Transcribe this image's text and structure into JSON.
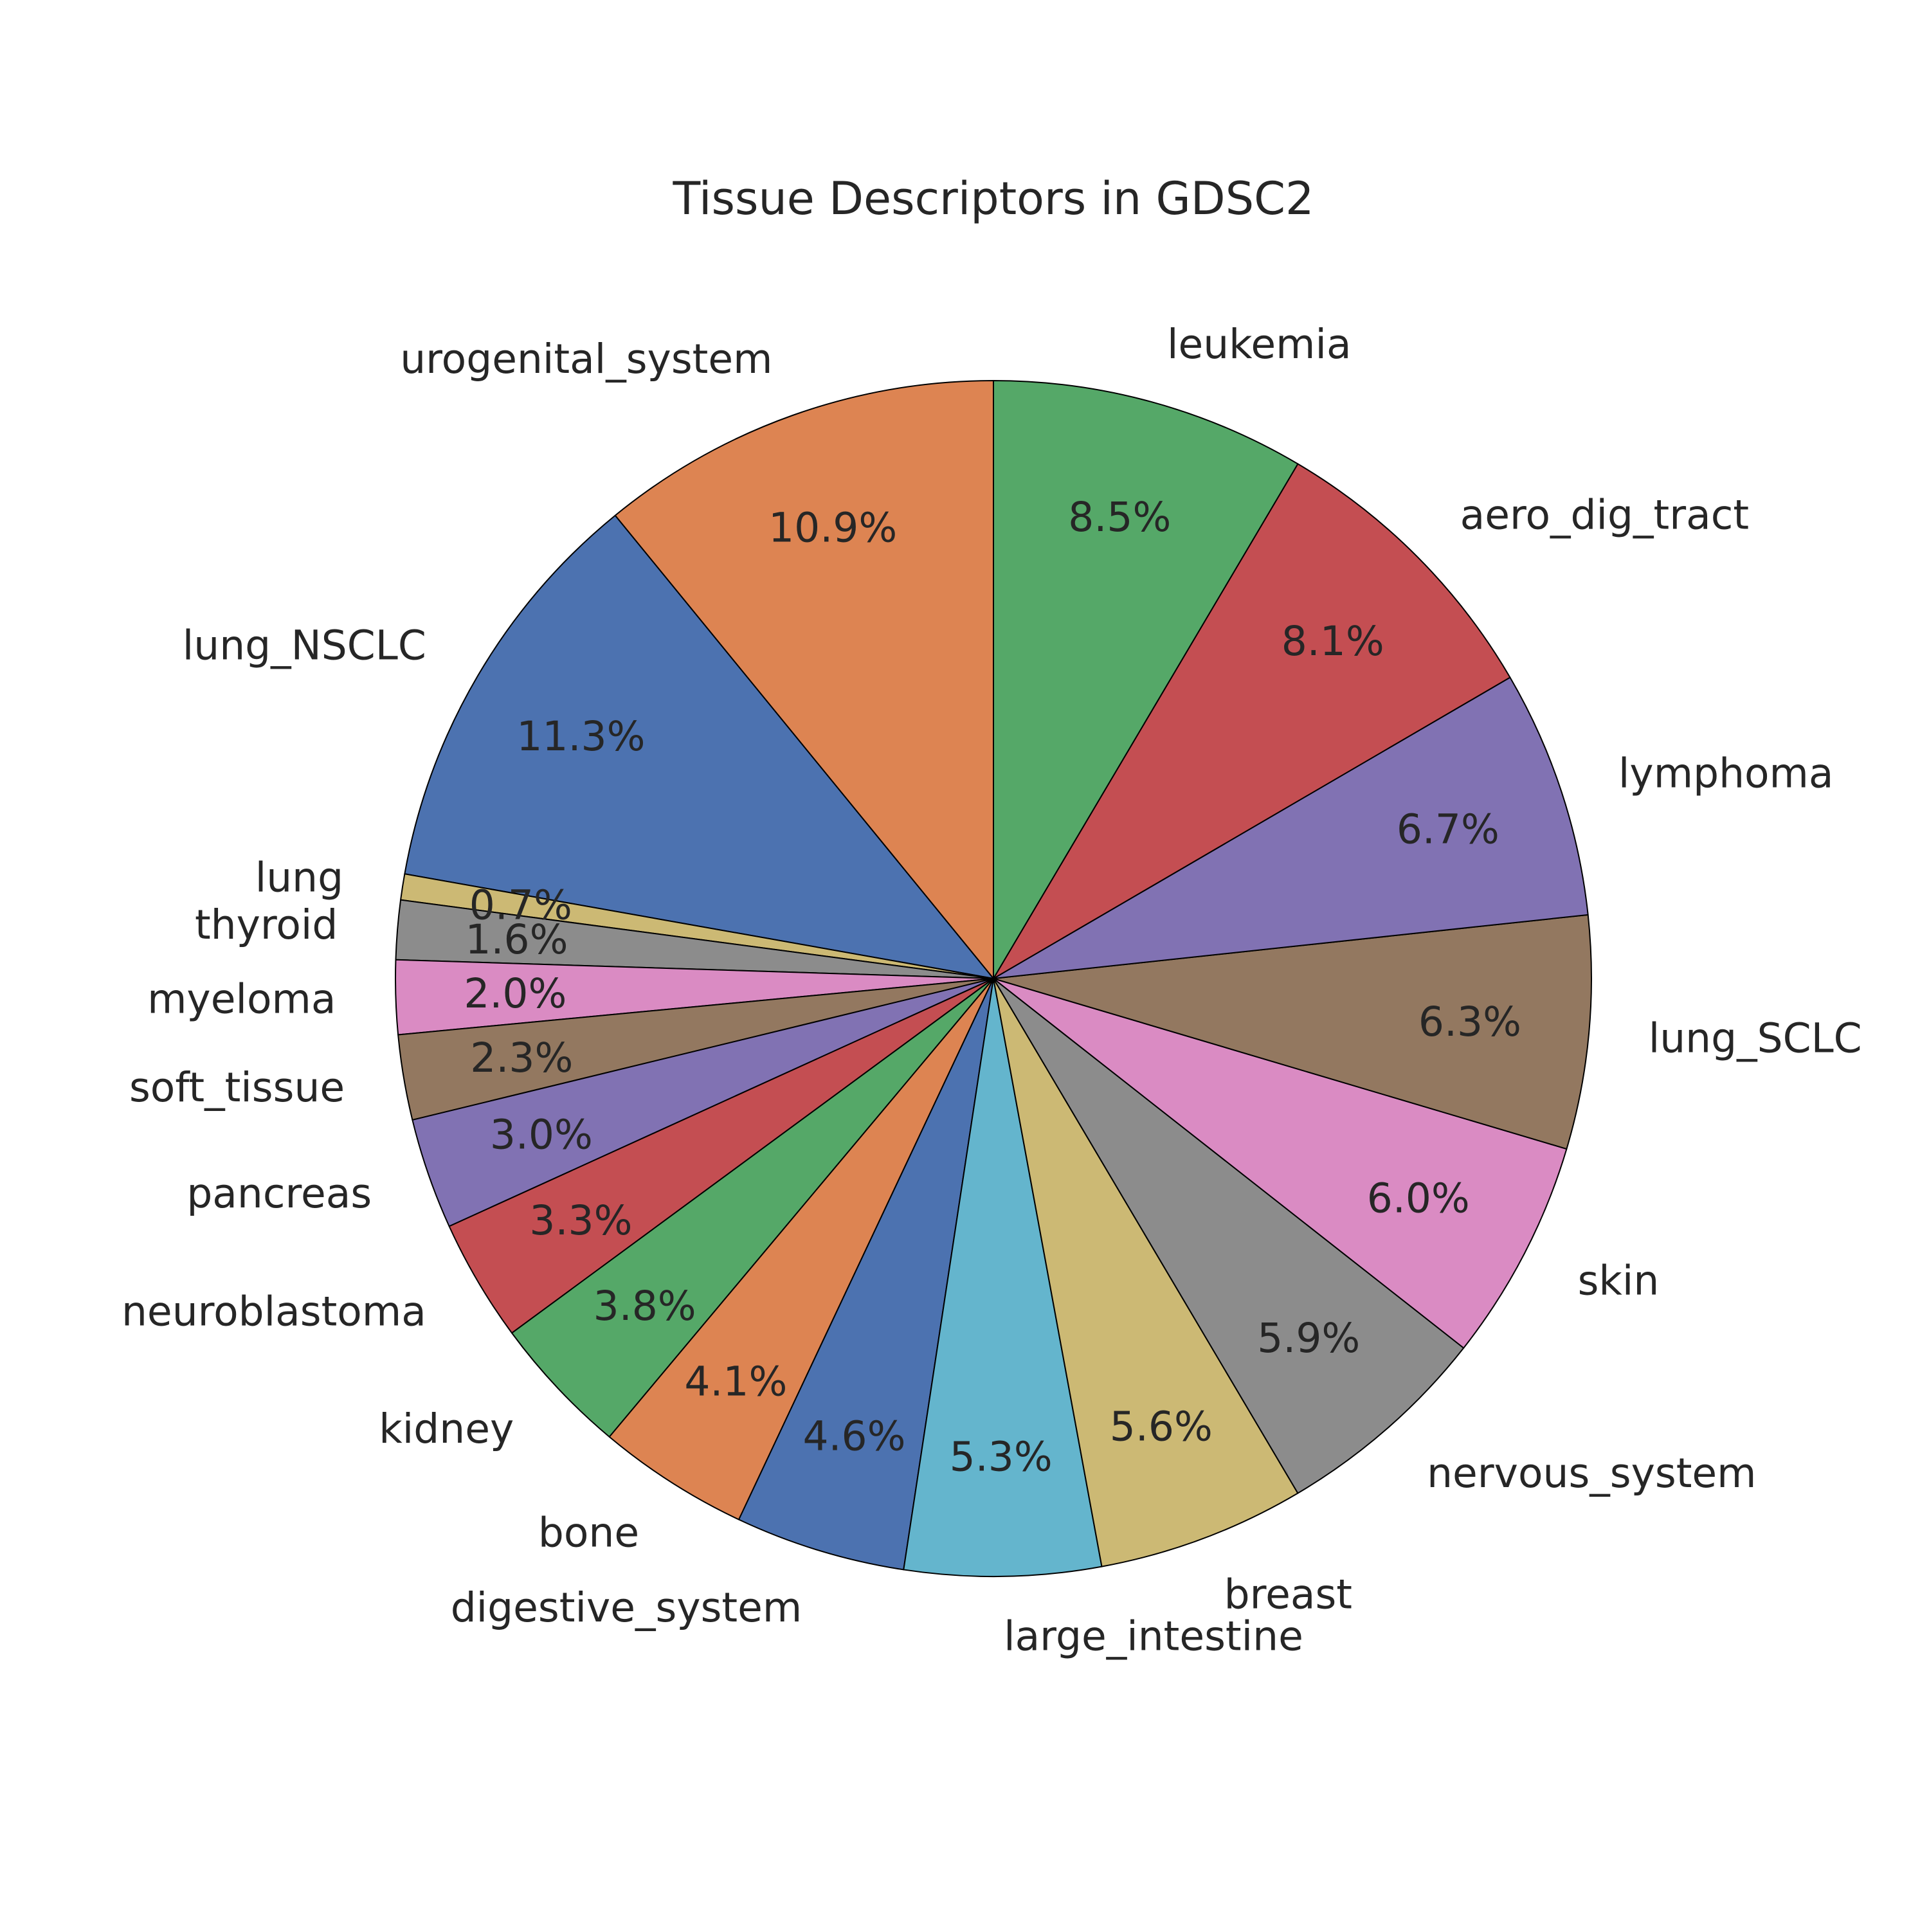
{
  "chart_data": {
    "type": "pie",
    "title": "Tissue Descriptors in GDSC2",
    "start_angle_deg": 90,
    "direction": "counterclockwise",
    "slices": [
      {
        "label": "urogenital_system",
        "value": 10.9,
        "pct_text": "10.9%",
        "color": "#dd8452"
      },
      {
        "label": "lung_NSCLC",
        "value": 11.3,
        "pct_text": "11.3%",
        "color": "#4c72b0"
      },
      {
        "label": "lung",
        "value": 0.7,
        "pct_text": "0.7%",
        "color": "#ccb974"
      },
      {
        "label": "thyroid",
        "value": 1.6,
        "pct_text": "1.6%",
        "color": "#8c8c8c"
      },
      {
        "label": "myeloma",
        "value": 2.0,
        "pct_text": "2.0%",
        "color": "#da8bc3"
      },
      {
        "label": "soft_tissue",
        "value": 2.3,
        "pct_text": "2.3%",
        "color": "#937860"
      },
      {
        "label": "pancreas",
        "value": 3.0,
        "pct_text": "3.0%",
        "color": "#8172b3"
      },
      {
        "label": "neuroblastoma",
        "value": 3.3,
        "pct_text": "3.3%",
        "color": "#c44e52"
      },
      {
        "label": "kidney",
        "value": 3.8,
        "pct_text": "3.8%",
        "color": "#55a868"
      },
      {
        "label": "bone",
        "value": 4.1,
        "pct_text": "4.1%",
        "color": "#dd8452"
      },
      {
        "label": "digestive_system",
        "value": 4.6,
        "pct_text": "4.6%",
        "color": "#4c72b0"
      },
      {
        "label": "large_intestine",
        "value": 5.3,
        "pct_text": "5.3%",
        "color": "#64b5cd"
      },
      {
        "label": "breast",
        "value": 5.6,
        "pct_text": "5.6%",
        "color": "#ccb974"
      },
      {
        "label": "nervous_system",
        "value": 5.9,
        "pct_text": "5.9%",
        "color": "#8c8c8c"
      },
      {
        "label": "skin",
        "value": 6.0,
        "pct_text": "6.0%",
        "color": "#da8bc3"
      },
      {
        "label": "lung_SCLC",
        "value": 6.3,
        "pct_text": "6.3%",
        "color": "#937860"
      },
      {
        "label": "lymphoma",
        "value": 6.7,
        "pct_text": "6.7%",
        "color": "#8172b3"
      },
      {
        "label": "aero_dig_tract",
        "value": 8.1,
        "pct_text": "8.1%",
        "color": "#c44e52"
      },
      {
        "label": "leukemia",
        "value": 8.5,
        "pct_text": "8.5%",
        "color": "#55a868"
      }
    ]
  }
}
